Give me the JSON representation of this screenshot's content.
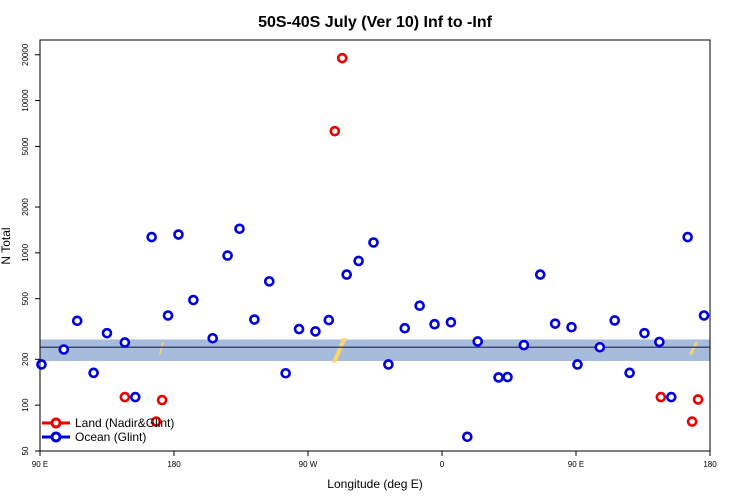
{
  "chart_data": {
    "type": "scatter",
    "title": "50S-40S July (Ver 10)   Inf to -Inf",
    "xlabel": "Longitude (deg E)",
    "ylabel": "N Total",
    "y_scale": "log",
    "ylim": [
      50,
      25000
    ],
    "x_ticks": [
      {
        "x": 0,
        "label": "90 E"
      },
      {
        "x": 90,
        "label": "180"
      },
      {
        "x": 180,
        "label": "90 W"
      },
      {
        "x": 270,
        "label": "0"
      },
      {
        "x": 360,
        "label": "90 E"
      },
      {
        "x": 450,
        "label": "180"
      }
    ],
    "y_ticks": [
      50,
      100,
      200,
      500,
      1000,
      2000,
      5000,
      10000,
      20000
    ],
    "band": {
      "low": 195,
      "high": 270,
      "line": 240,
      "color": "#a7bcdc",
      "line_color": "#3c4b6e"
    },
    "land_highlight_color": "#ffd56b",
    "land_highlights": [
      {
        "x0": 80,
        "x1": 83,
        "y0": 215,
        "y1": 260
      },
      {
        "x0": 196,
        "x1": 206,
        "y0": 190,
        "y1": 275
      },
      {
        "x0": 436,
        "x1": 442,
        "y0": 215,
        "y1": 260
      }
    ],
    "series": [
      {
        "name": "Land (Nadir&Glint)",
        "color": "#ee0000",
        "points": [
          {
            "x": 57,
            "y": 113
          },
          {
            "x": 78,
            "y": 78
          },
          {
            "x": 82,
            "y": 108
          },
          {
            "x": 198,
            "y": 6300
          },
          {
            "x": 203,
            "y": 19000
          },
          {
            "x": 417,
            "y": 113
          },
          {
            "x": 438,
            "y": 78
          },
          {
            "x": 442,
            "y": 109
          }
        ]
      },
      {
        "name": "Ocean (Glint)",
        "color": "#0000dd",
        "points": [
          {
            "x": 1,
            "y": 185
          },
          {
            "x": 16,
            "y": 232
          },
          {
            "x": 25,
            "y": 358
          },
          {
            "x": 36,
            "y": 163
          },
          {
            "x": 45,
            "y": 297
          },
          {
            "x": 57,
            "y": 258
          },
          {
            "x": 64,
            "y": 113
          },
          {
            "x": 75,
            "y": 1270
          },
          {
            "x": 86,
            "y": 388
          },
          {
            "x": 93,
            "y": 1320
          },
          {
            "x": 103,
            "y": 490
          },
          {
            "x": 116,
            "y": 275
          },
          {
            "x": 126,
            "y": 960
          },
          {
            "x": 134,
            "y": 1440
          },
          {
            "x": 144,
            "y": 365
          },
          {
            "x": 154,
            "y": 650
          },
          {
            "x": 165,
            "y": 162
          },
          {
            "x": 174,
            "y": 316
          },
          {
            "x": 185,
            "y": 305
          },
          {
            "x": 194,
            "y": 362
          },
          {
            "x": 206,
            "y": 720
          },
          {
            "x": 214,
            "y": 885
          },
          {
            "x": 224,
            "y": 1170
          },
          {
            "x": 234,
            "y": 185
          },
          {
            "x": 245,
            "y": 320
          },
          {
            "x": 255,
            "y": 450
          },
          {
            "x": 265,
            "y": 340
          },
          {
            "x": 276,
            "y": 350
          },
          {
            "x": 287,
            "y": 62
          },
          {
            "x": 294,
            "y": 262
          },
          {
            "x": 308,
            "y": 152
          },
          {
            "x": 314,
            "y": 153
          },
          {
            "x": 325,
            "y": 248
          },
          {
            "x": 336,
            "y": 720
          },
          {
            "x": 346,
            "y": 343
          },
          {
            "x": 357,
            "y": 325
          },
          {
            "x": 361,
            "y": 185
          },
          {
            "x": 376,
            "y": 240
          },
          {
            "x": 386,
            "y": 360
          },
          {
            "x": 396,
            "y": 163
          },
          {
            "x": 406,
            "y": 297
          },
          {
            "x": 416,
            "y": 260
          },
          {
            "x": 424,
            "y": 113
          },
          {
            "x": 435,
            "y": 1270
          },
          {
            "x": 446,
            "y": 388
          }
        ]
      }
    ],
    "legend": {
      "position": "bottom-left"
    }
  }
}
